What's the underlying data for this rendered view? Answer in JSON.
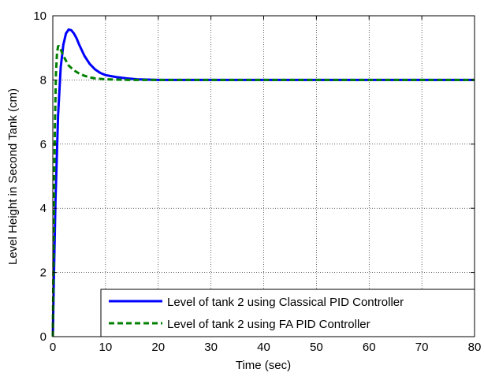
{
  "chart_data": {
    "type": "line",
    "xlabel": "Time (sec)",
    "ylabel": "Level Height in Second Tank (cm)",
    "xlim": [
      0,
      80
    ],
    "ylim": [
      0,
      10
    ],
    "xticks": [
      0,
      10,
      20,
      30,
      40,
      50,
      60,
      70,
      80
    ],
    "yticks": [
      0,
      2,
      4,
      6,
      8,
      10
    ],
    "xtick_labels": [
      "0",
      "10",
      "20",
      "30",
      "40",
      "50",
      "60",
      "70",
      "80"
    ],
    "ytick_labels": [
      "0",
      "2",
      "4",
      "6",
      "8",
      "10"
    ],
    "grid": true,
    "legend_position": "bottom-right",
    "series": [
      {
        "name": "Level of tank 2 using Classical PID Controller",
        "color": "#0000ff",
        "style": "solid",
        "x": [
          0,
          0.2,
          0.5,
          1.0,
          1.5,
          2.0,
          2.5,
          3.0,
          3.5,
          4.0,
          4.5,
          5.0,
          6.0,
          7.0,
          8.0,
          9.0,
          10.0,
          11.0,
          12.0,
          14.0,
          16.0,
          18.0,
          20.0,
          30.0,
          40.0,
          50.0,
          60.0,
          70.0,
          80.0
        ],
        "y": [
          0,
          1.8,
          4.2,
          6.9,
          8.4,
          9.1,
          9.45,
          9.57,
          9.55,
          9.45,
          9.3,
          9.1,
          8.75,
          8.5,
          8.33,
          8.22,
          8.15,
          8.12,
          8.09,
          8.05,
          8.02,
          8.01,
          8.0,
          8.0,
          8.0,
          8.0,
          8.0,
          8.0,
          8.0
        ]
      },
      {
        "name": "Level of tank 2 using FA PID Controller",
        "color": "#008000",
        "style": "dashed",
        "x": [
          0,
          0.2,
          0.4,
          0.6,
          0.8,
          1.0,
          1.2,
          1.5,
          2.0,
          2.5,
          3.0,
          4.0,
          5.0,
          6.0,
          7.0,
          8.0,
          10.0,
          12.0,
          15.0,
          20.0,
          30.0,
          40.0,
          50.0,
          60.0,
          70.0,
          80.0
        ],
        "y": [
          0,
          3.5,
          6.6,
          8.2,
          8.85,
          9.05,
          9.05,
          8.95,
          8.75,
          8.6,
          8.45,
          8.3,
          8.2,
          8.13,
          8.08,
          8.05,
          8.02,
          8.01,
          8.0,
          8.0,
          8.0,
          8.0,
          8.0,
          8.0,
          8.0,
          8.0
        ]
      }
    ]
  }
}
